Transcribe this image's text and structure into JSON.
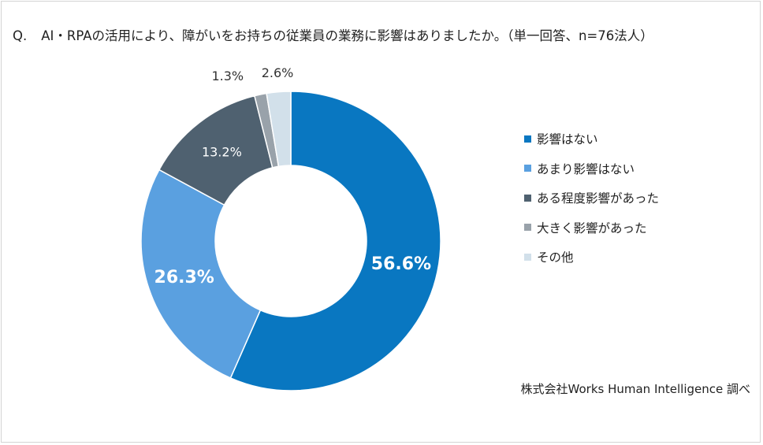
{
  "title": {
    "prefix": "Q.",
    "text": "AI・RPAの活用により、障がいをお持ちの従業員の業務に影響はありましたか。（単一回答、n=76法人）"
  },
  "chart_data": {
    "type": "pie",
    "donut": true,
    "categories": [
      "影響はない",
      "あまり影響はない",
      "ある程度影響があった",
      "大きく影響があった",
      "その他"
    ],
    "values": [
      56.6,
      26.3,
      13.2,
      1.3,
      2.6
    ],
    "labels": [
      "56.6%",
      "26.3%",
      "13.2%",
      "1.3%",
      "2.6%"
    ],
    "colors": [
      "#0977c1",
      "#5aa0e0",
      "#4f6170",
      "#99a2aa",
      "#d2e0ea"
    ],
    "legend_position": "right"
  },
  "source": "株式会社Works Human Intelligence 調べ"
}
